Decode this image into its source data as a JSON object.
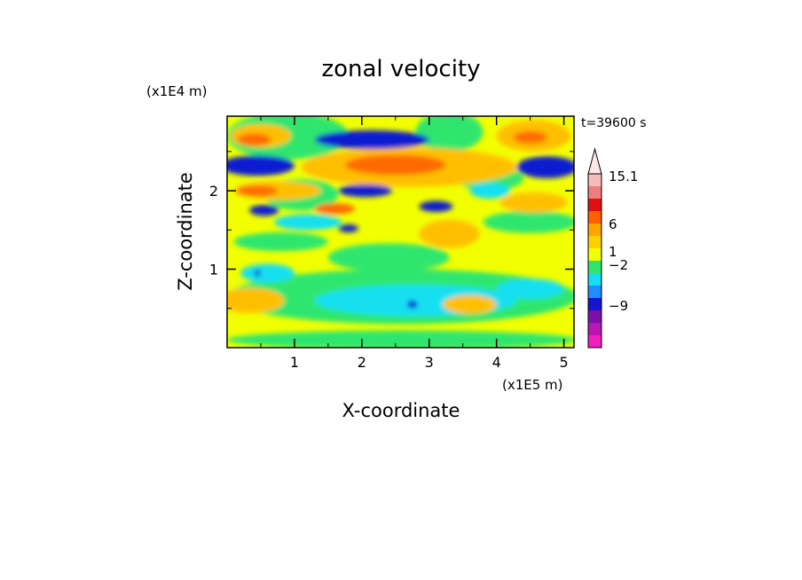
{
  "chart_data": {
    "type": "heatmap",
    "title": "zonal velocity",
    "xlabel": "X-coordinate",
    "ylabel": "Z-coordinate",
    "x_unit": "(x1E5 m)",
    "y_unit": "(x1E4 m)",
    "time_label": "t=39600 s",
    "xlim": [
      0,
      5.15
    ],
    "ylim": [
      0,
      2.95
    ],
    "x_ticks": [
      1,
      2,
      3,
      4,
      5
    ],
    "y_ticks": [
      1,
      2
    ],
    "grid": false,
    "colorbar": {
      "levels": [
        -15.1,
        -12,
        -9,
        -6,
        -4,
        -2,
        -1,
        1,
        2,
        4,
        6,
        9,
        12,
        15.1
      ],
      "colors": [
        "#ee1fbe",
        "#b717b3",
        "#7b0fa6",
        "#1414d2",
        "#1f8cff",
        "#17dcf2",
        "#2ee66e",
        "#f2ff00",
        "#ffd000",
        "#ffa500",
        "#ff6000",
        "#e01010",
        "#f07d7d",
        "#f5bcbc"
      ],
      "labels": [
        "15.1",
        "6",
        "1",
        "-2",
        "-9"
      ],
      "extend": "max"
    },
    "field_colors": {
      "negative_strong": "#0f1bd0",
      "negative": "#19e0f0",
      "near_zero": "#2ee66e",
      "weak_positive": "#f2ff00",
      "positive": "#ffbf00",
      "strong_positive": "#ff6a00"
    }
  }
}
